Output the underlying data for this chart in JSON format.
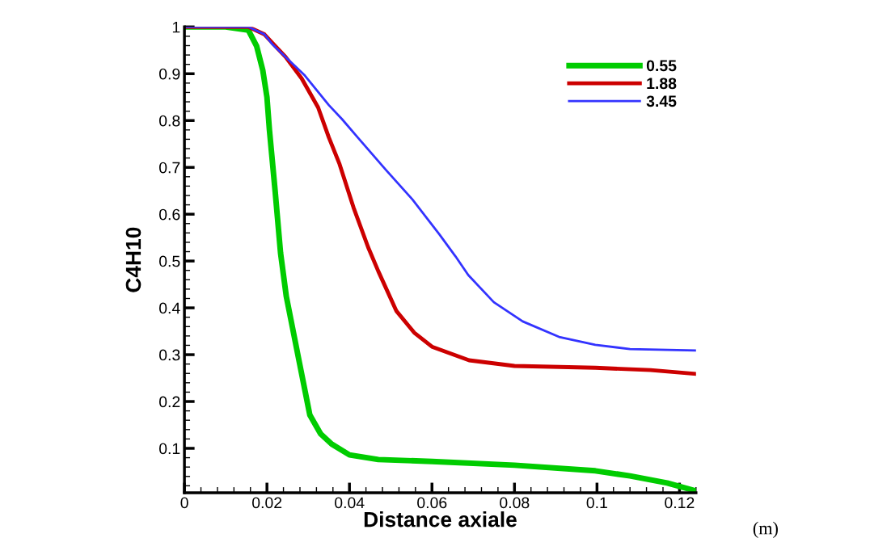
{
  "chart_data": {
    "type": "line",
    "xlabel": "Distance axiale",
    "ylabel": "C4H10",
    "annotations": [
      "(m)"
    ],
    "xlim": [
      0,
      0.124
    ],
    "ylim": [
      0.005,
      1
    ],
    "xticks": [
      0,
      0.02,
      0.04,
      0.06,
      0.08,
      0.1,
      0.12
    ],
    "yticks": [
      0.1,
      0.2,
      0.3,
      0.4,
      0.5,
      0.6,
      0.7,
      0.8,
      0.9,
      1
    ],
    "grid": false,
    "legend": "top right",
    "line_style": "solid",
    "marker": "none",
    "series": [
      {
        "name": "0.55",
        "color": "#00cc00",
        "x": [
          0,
          0.01,
          0.0155,
          0.0175,
          0.019,
          0.02,
          0.0206,
          0.022,
          0.0233,
          0.0247,
          0.0278,
          0.0304,
          0.033,
          0.0357,
          0.04,
          0.047,
          0.06,
          0.08,
          0.0996,
          0.108,
          0.117,
          0.124
        ],
        "values": [
          1,
          1,
          0.993,
          0.959,
          0.907,
          0.85,
          0.78,
          0.648,
          0.517,
          0.424,
          0.286,
          0.171,
          0.131,
          0.109,
          0.086,
          0.076,
          0.072,
          0.064,
          0.052,
          0.041,
          0.026,
          0.009
        ]
      },
      {
        "name": "1.88",
        "color": "#cc0000",
        "x": [
          0,
          0.0155,
          0.0194,
          0.0214,
          0.0245,
          0.0284,
          0.0324,
          0.035,
          0.0376,
          0.041,
          0.0445,
          0.047,
          0.0514,
          0.0557,
          0.06,
          0.069,
          0.08,
          0.0996,
          0.113,
          0.124
        ],
        "values": [
          1,
          1,
          0.984,
          0.965,
          0.936,
          0.89,
          0.828,
          0.764,
          0.707,
          0.614,
          0.53,
          0.478,
          0.393,
          0.347,
          0.317,
          0.288,
          0.276,
          0.272,
          0.267,
          0.259
        ]
      },
      {
        "name": "3.45",
        "color": "#3333ff",
        "x": [
          0,
          0.0155,
          0.0194,
          0.0214,
          0.0245,
          0.0292,
          0.035,
          0.0382,
          0.042,
          0.0488,
          0.0553,
          0.0618,
          0.0657,
          0.0688,
          0.075,
          0.082,
          0.0908,
          0.0996,
          0.108,
          0.124
        ],
        "values": [
          1,
          1,
          0.984,
          0.962,
          0.936,
          0.896,
          0.833,
          0.803,
          0.764,
          0.695,
          0.631,
          0.557,
          0.51,
          0.47,
          0.412,
          0.371,
          0.338,
          0.321,
          0.312,
          0.309
        ]
      }
    ]
  }
}
